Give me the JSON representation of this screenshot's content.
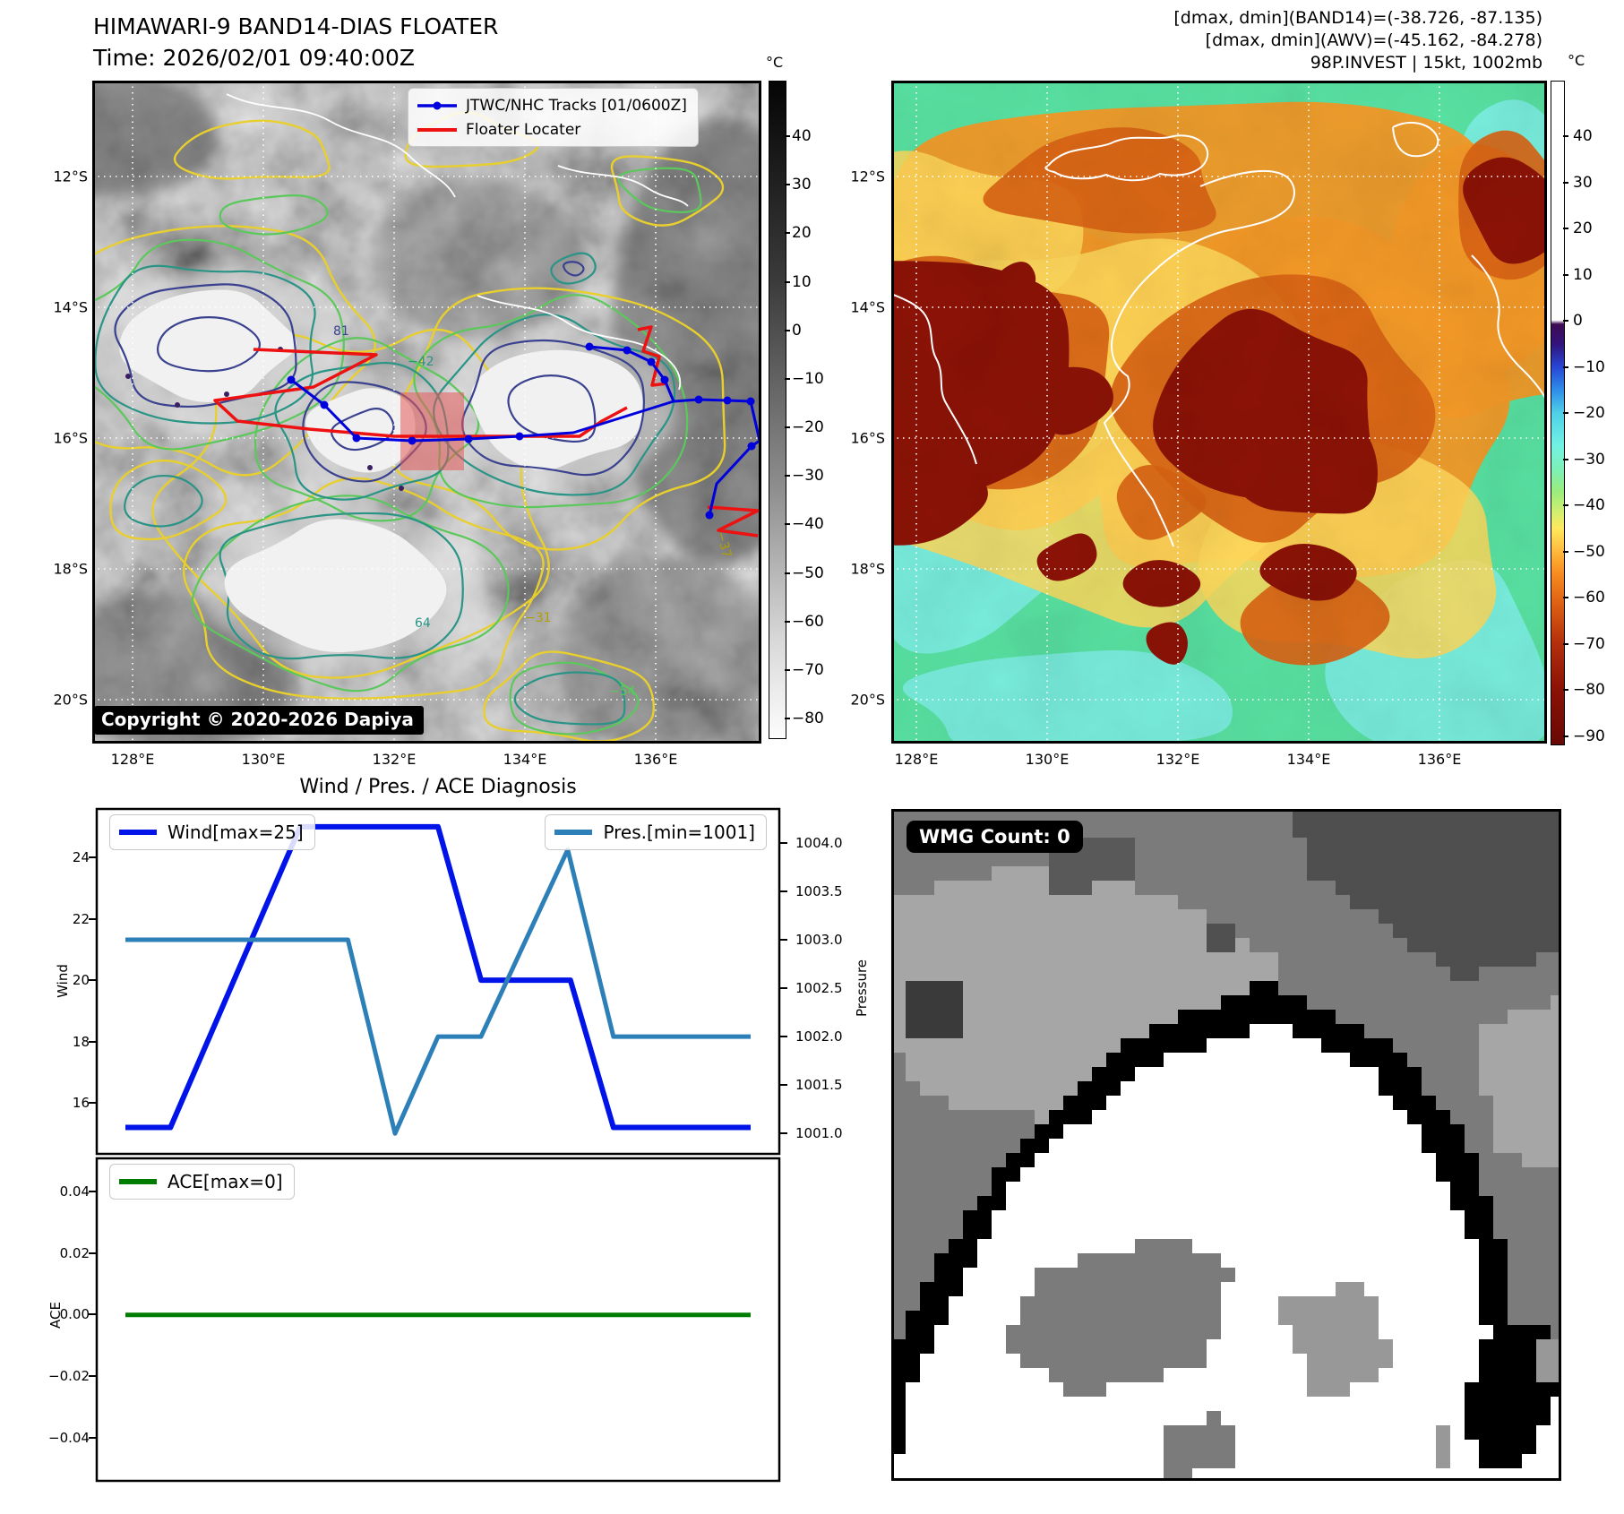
{
  "panel1": {
    "title_line1": "HIMAWARI-9 BAND14-DIAS FLOATER",
    "title_line2": "Time: 2026/02/01 09:40:00Z",
    "legend": {
      "track_label": "JTWC/NHC Tracks [01/0600Z]",
      "floater_label": "Floater Locater"
    },
    "copyright": "Copyright © 2020-2026 Dapiya",
    "lat_labels": [
      "12°S",
      "14°S",
      "16°S",
      "18°S",
      "20°S"
    ],
    "lon_labels": [
      "128°E",
      "130°E",
      "132°E",
      "134°E",
      "136°E"
    ],
    "colorbar": {
      "unit": "°C",
      "ticks": [
        "40",
        "30",
        "20",
        "10",
        "0",
        "−10",
        "−20",
        "−30",
        "−40",
        "−50",
        "−60",
        "−70",
        "−80"
      ]
    },
    "contour_labels": [
      "81",
      "−42",
      "64",
      "−31",
      "−54",
      "−37"
    ]
  },
  "panel2": {
    "header_line1": "[dmax, dmin](BAND14)=(-38.726, -87.135)",
    "header_line2": "[dmax, dmin](AWV)=(-45.162, -84.278)",
    "header_line3": "98P.INVEST | 15kt, 1002mb",
    "lat_labels": [
      "12°S",
      "14°S",
      "16°S",
      "18°S",
      "20°S"
    ],
    "lon_labels": [
      "128°E",
      "130°E",
      "132°E",
      "134°E",
      "136°E"
    ],
    "colorbar": {
      "unit": "°C",
      "ticks": [
        "40",
        "30",
        "20",
        "10",
        "0",
        "−10",
        "−20",
        "−30",
        "−40",
        "−50",
        "−60",
        "−70",
        "−80",
        "−90"
      ]
    }
  },
  "panel3": {
    "title": "Wind / Pres. / ACE Diagnosis",
    "wind_axis_label": "Wind",
    "pressure_axis_label": "Pressure",
    "ace_axis_label": "ACE",
    "wind_ticks": [
      "24",
      "22",
      "20",
      "18",
      "16"
    ],
    "pressure_ticks": [
      "1004.0",
      "1003.5",
      "1003.0",
      "1002.5",
      "1002.0",
      "1001.5",
      "1001.0"
    ],
    "ace_ticks": [
      "0.04",
      "0.02",
      "0.00",
      "−0.02",
      "−0.04"
    ]
  },
  "panel4": {
    "wmg_label": "WMG Count: 0"
  },
  "colors": {
    "wind": "#0013e8",
    "pressure": "#2d7fb8",
    "ace": "#007d00",
    "track_blue": "#0000dd",
    "floater_red": "#ee1111"
  },
  "chart_data": {
    "type": "line",
    "title": "Wind / Pres. / ACE Diagnosis",
    "x_range": [
      0,
      1
    ],
    "grid": false,
    "subplots": [
      {
        "left_axis": {
          "label": "Wind",
          "ticks": [
            24,
            22,
            20,
            18,
            16
          ],
          "range": [
            14.34,
            25.58
          ]
        },
        "right_axis": {
          "label": "Pressure",
          "ticks": [
            1004.0,
            1003.5,
            1003.0,
            1002.5,
            1002.0,
            1001.5,
            1001.0
          ],
          "range": [
            1000.79,
            1004.35
          ]
        },
        "series": [
          {
            "name": "Wind[max=25]",
            "axis": "left",
            "color": "#0013e8",
            "points": [
              [
                0.042,
                15.2
              ],
              [
                0.108,
                15.2
              ],
              [
                0.298,
                25
              ],
              [
                0.5,
                25
              ],
              [
                0.563,
                20
              ],
              [
                0.694,
                20
              ],
              [
                0.757,
                15.2
              ],
              [
                0.958,
                15.2
              ]
            ]
          },
          {
            "name": "Pres.[min=1001]",
            "axis": "right",
            "color": "#2d7fb8",
            "points": [
              [
                0.042,
                1003.0
              ],
              [
                0.368,
                1003.0
              ],
              [
                0.437,
                1001.0
              ],
              [
                0.5,
                1002.0
              ],
              [
                0.563,
                1002.0
              ],
              [
                0.69,
                1003.93
              ],
              [
                0.757,
                1002.0
              ],
              [
                0.958,
                1002.0
              ]
            ]
          }
        ]
      },
      {
        "left_axis": {
          "label": "ACE",
          "ticks": [
            0.04,
            0.02,
            0.0,
            -0.02,
            -0.04
          ],
          "range": [
            -0.0539,
            0.0508
          ]
        },
        "series": [
          {
            "name": "ACE[max=0]",
            "axis": "left",
            "color": "#007d00",
            "points": [
              [
                0.042,
                0.0
              ],
              [
                0.958,
                0.0
              ]
            ]
          }
        ]
      }
    ]
  }
}
